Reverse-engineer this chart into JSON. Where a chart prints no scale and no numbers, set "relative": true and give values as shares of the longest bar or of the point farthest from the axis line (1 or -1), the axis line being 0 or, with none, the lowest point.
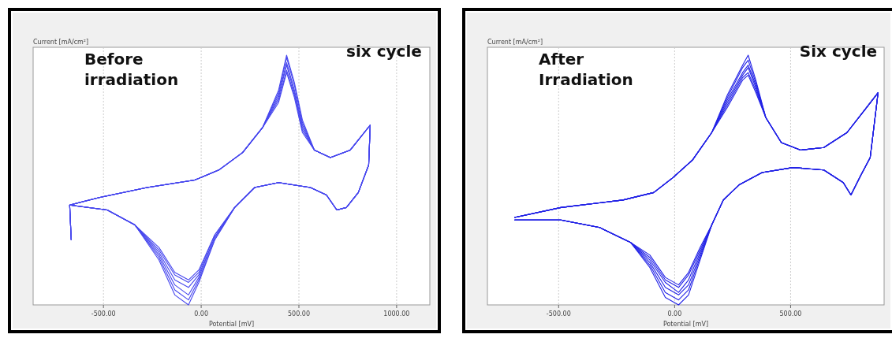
{
  "chart_data": [
    {
      "type": "line",
      "relative": true,
      "xlabel": "Potential [mV]",
      "ylabel": "Current [mA/cm²]",
      "annotations": [
        "Before irradiation",
        "six cycle"
      ],
      "grid": "x",
      "tick_labels": "x",
      "xlim": [
        -860,
        1170
      ],
      "xticks": [
        {
          "value": -500,
          "label": "-500.00"
        },
        {
          "value": 0,
          "label": "0.00"
        },
        {
          "value": 500,
          "label": "500.00"
        },
        {
          "value": 1000,
          "label": "1000.00"
        }
      ],
      "x": [
        -665,
        -673,
        -522,
        -277,
        -33,
        90,
        212,
        314,
        396,
        437,
        477,
        518,
        579,
        661,
        763,
        865,
        857,
        804,
        743,
        694,
        641,
        559,
        396,
        273,
        171,
        69,
        -12,
        -65,
        -135,
        -216,
        -339,
        -481,
        -673
      ],
      "series": [
        {
          "color": "#4747ee",
          "values": [
            0.26,
            0.4,
            0.43,
            0.47,
            0.5,
            0.54,
            0.61,
            0.71,
            0.86,
            1.0,
            0.89,
            0.74,
            0.62,
            0.59,
            0.62,
            0.72,
            0.56,
            0.45,
            0.39,
            0.38,
            0.44,
            0.47,
            0.49,
            0.47,
            0.39,
            0.26,
            0.09,
            0.0,
            0.04,
            0.18,
            0.32,
            0.38,
            0.4
          ]
        },
        {
          "color": "#4747ee",
          "values": [
            0.26,
            0.4,
            0.43,
            0.47,
            0.5,
            0.54,
            0.61,
            0.71,
            0.85,
            0.99,
            0.88,
            0.73,
            0.62,
            0.59,
            0.62,
            0.72,
            0.56,
            0.45,
            0.39,
            0.38,
            0.44,
            0.47,
            0.49,
            0.47,
            0.39,
            0.26,
            0.1,
            0.02,
            0.06,
            0.19,
            0.32,
            0.38,
            0.4
          ]
        },
        {
          "color": "#4747ee",
          "values": [
            0.26,
            0.4,
            0.43,
            0.47,
            0.5,
            0.54,
            0.61,
            0.71,
            0.84,
            0.97,
            0.86,
            0.72,
            0.62,
            0.59,
            0.62,
            0.72,
            0.56,
            0.45,
            0.39,
            0.38,
            0.44,
            0.47,
            0.49,
            0.47,
            0.39,
            0.27,
            0.11,
            0.04,
            0.08,
            0.2,
            0.32,
            0.38,
            0.4
          ]
        },
        {
          "color": "#4747ee",
          "values": [
            0.26,
            0.4,
            0.43,
            0.47,
            0.5,
            0.54,
            0.61,
            0.71,
            0.83,
            0.96,
            0.85,
            0.71,
            0.62,
            0.59,
            0.62,
            0.72,
            0.56,
            0.45,
            0.39,
            0.38,
            0.44,
            0.47,
            0.49,
            0.47,
            0.39,
            0.27,
            0.12,
            0.07,
            0.1,
            0.21,
            0.32,
            0.38,
            0.4
          ]
        },
        {
          "color": "#4747ee",
          "values": [
            0.26,
            0.4,
            0.43,
            0.47,
            0.5,
            0.54,
            0.61,
            0.71,
            0.82,
            0.94,
            0.84,
            0.7,
            0.62,
            0.59,
            0.62,
            0.72,
            0.56,
            0.45,
            0.39,
            0.38,
            0.44,
            0.47,
            0.49,
            0.47,
            0.39,
            0.28,
            0.13,
            0.09,
            0.12,
            0.22,
            0.32,
            0.38,
            0.4
          ]
        },
        {
          "color": "#4747ee",
          "values": [
            0.26,
            0.4,
            0.43,
            0.47,
            0.5,
            0.54,
            0.61,
            0.71,
            0.81,
            0.93,
            0.83,
            0.69,
            0.62,
            0.59,
            0.62,
            0.72,
            0.56,
            0.45,
            0.39,
            0.38,
            0.44,
            0.47,
            0.49,
            0.47,
            0.39,
            0.28,
            0.14,
            0.1,
            0.13,
            0.23,
            0.32,
            0.38,
            0.4
          ]
        }
      ]
    },
    {
      "type": "line",
      "relative": true,
      "xlabel": "Potential [mV]",
      "ylabel": "Current [mA/cm²]",
      "annotations": [
        "After Irradiation",
        "Six cycle"
      ],
      "grid": "x",
      "tick_labels": "x",
      "xlim": [
        -807,
        903
      ],
      "xticks": [
        {
          "value": -500,
          "label": "-500.00"
        },
        {
          "value": 0,
          "label": "0.00"
        },
        {
          "value": 500,
          "label": "500.00"
        }
      ],
      "x": [
        -690,
        -490,
        -223,
        -90,
        -7,
        77,
        160,
        227,
        293,
        317,
        350,
        393,
        460,
        543,
        643,
        743,
        827,
        877,
        843,
        803,
        760,
        727,
        643,
        510,
        377,
        277,
        210,
        160,
        110,
        60,
        17,
        -40,
        -107,
        -190,
        -323,
        -490,
        -690
      ],
      "series": [
        {
          "color": "#2323e6",
          "values": [
            0.35,
            0.39,
            0.42,
            0.45,
            0.51,
            0.58,
            0.69,
            0.84,
            0.96,
            1.0,
            0.9,
            0.75,
            0.65,
            0.62,
            0.63,
            0.69,
            0.79,
            0.85,
            0.59,
            0.52,
            0.44,
            0.49,
            0.54,
            0.55,
            0.53,
            0.48,
            0.42,
            0.32,
            0.18,
            0.04,
            0.0,
            0.03,
            0.15,
            0.25,
            0.31,
            0.34,
            0.34
          ]
        },
        {
          "color": "#2323e6",
          "values": [
            0.35,
            0.39,
            0.42,
            0.45,
            0.51,
            0.58,
            0.69,
            0.83,
            0.95,
            0.98,
            0.89,
            0.75,
            0.65,
            0.62,
            0.63,
            0.69,
            0.79,
            0.85,
            0.59,
            0.52,
            0.44,
            0.49,
            0.54,
            0.55,
            0.53,
            0.48,
            0.42,
            0.32,
            0.19,
            0.06,
            0.02,
            0.05,
            0.16,
            0.25,
            0.31,
            0.34,
            0.34
          ]
        },
        {
          "color": "#2323e6",
          "values": [
            0.35,
            0.39,
            0.42,
            0.45,
            0.51,
            0.58,
            0.69,
            0.82,
            0.93,
            0.96,
            0.88,
            0.75,
            0.65,
            0.62,
            0.63,
            0.69,
            0.79,
            0.85,
            0.59,
            0.52,
            0.44,
            0.49,
            0.54,
            0.55,
            0.53,
            0.48,
            0.42,
            0.32,
            0.2,
            0.08,
            0.04,
            0.07,
            0.17,
            0.25,
            0.31,
            0.34,
            0.34
          ]
        },
        {
          "color": "#2323e6",
          "values": [
            0.35,
            0.39,
            0.42,
            0.45,
            0.51,
            0.58,
            0.69,
            0.81,
            0.92,
            0.95,
            0.87,
            0.75,
            0.65,
            0.62,
            0.63,
            0.69,
            0.79,
            0.85,
            0.59,
            0.52,
            0.44,
            0.49,
            0.54,
            0.55,
            0.53,
            0.48,
            0.42,
            0.32,
            0.21,
            0.1,
            0.05,
            0.09,
            0.18,
            0.25,
            0.31,
            0.34,
            0.34
          ]
        },
        {
          "color": "#2323e6",
          "values": [
            0.35,
            0.39,
            0.42,
            0.45,
            0.51,
            0.58,
            0.69,
            0.8,
            0.91,
            0.93,
            0.86,
            0.75,
            0.65,
            0.62,
            0.63,
            0.69,
            0.79,
            0.85,
            0.59,
            0.52,
            0.44,
            0.49,
            0.54,
            0.55,
            0.53,
            0.48,
            0.42,
            0.32,
            0.22,
            0.12,
            0.07,
            0.1,
            0.19,
            0.25,
            0.31,
            0.34,
            0.34
          ]
        },
        {
          "color": "#2323e6",
          "values": [
            0.35,
            0.39,
            0.42,
            0.45,
            0.51,
            0.58,
            0.69,
            0.79,
            0.9,
            0.92,
            0.85,
            0.75,
            0.65,
            0.62,
            0.63,
            0.69,
            0.79,
            0.85,
            0.59,
            0.52,
            0.44,
            0.49,
            0.54,
            0.55,
            0.53,
            0.48,
            0.42,
            0.32,
            0.23,
            0.13,
            0.08,
            0.11,
            0.2,
            0.25,
            0.31,
            0.34,
            0.34
          ]
        }
      ]
    }
  ]
}
